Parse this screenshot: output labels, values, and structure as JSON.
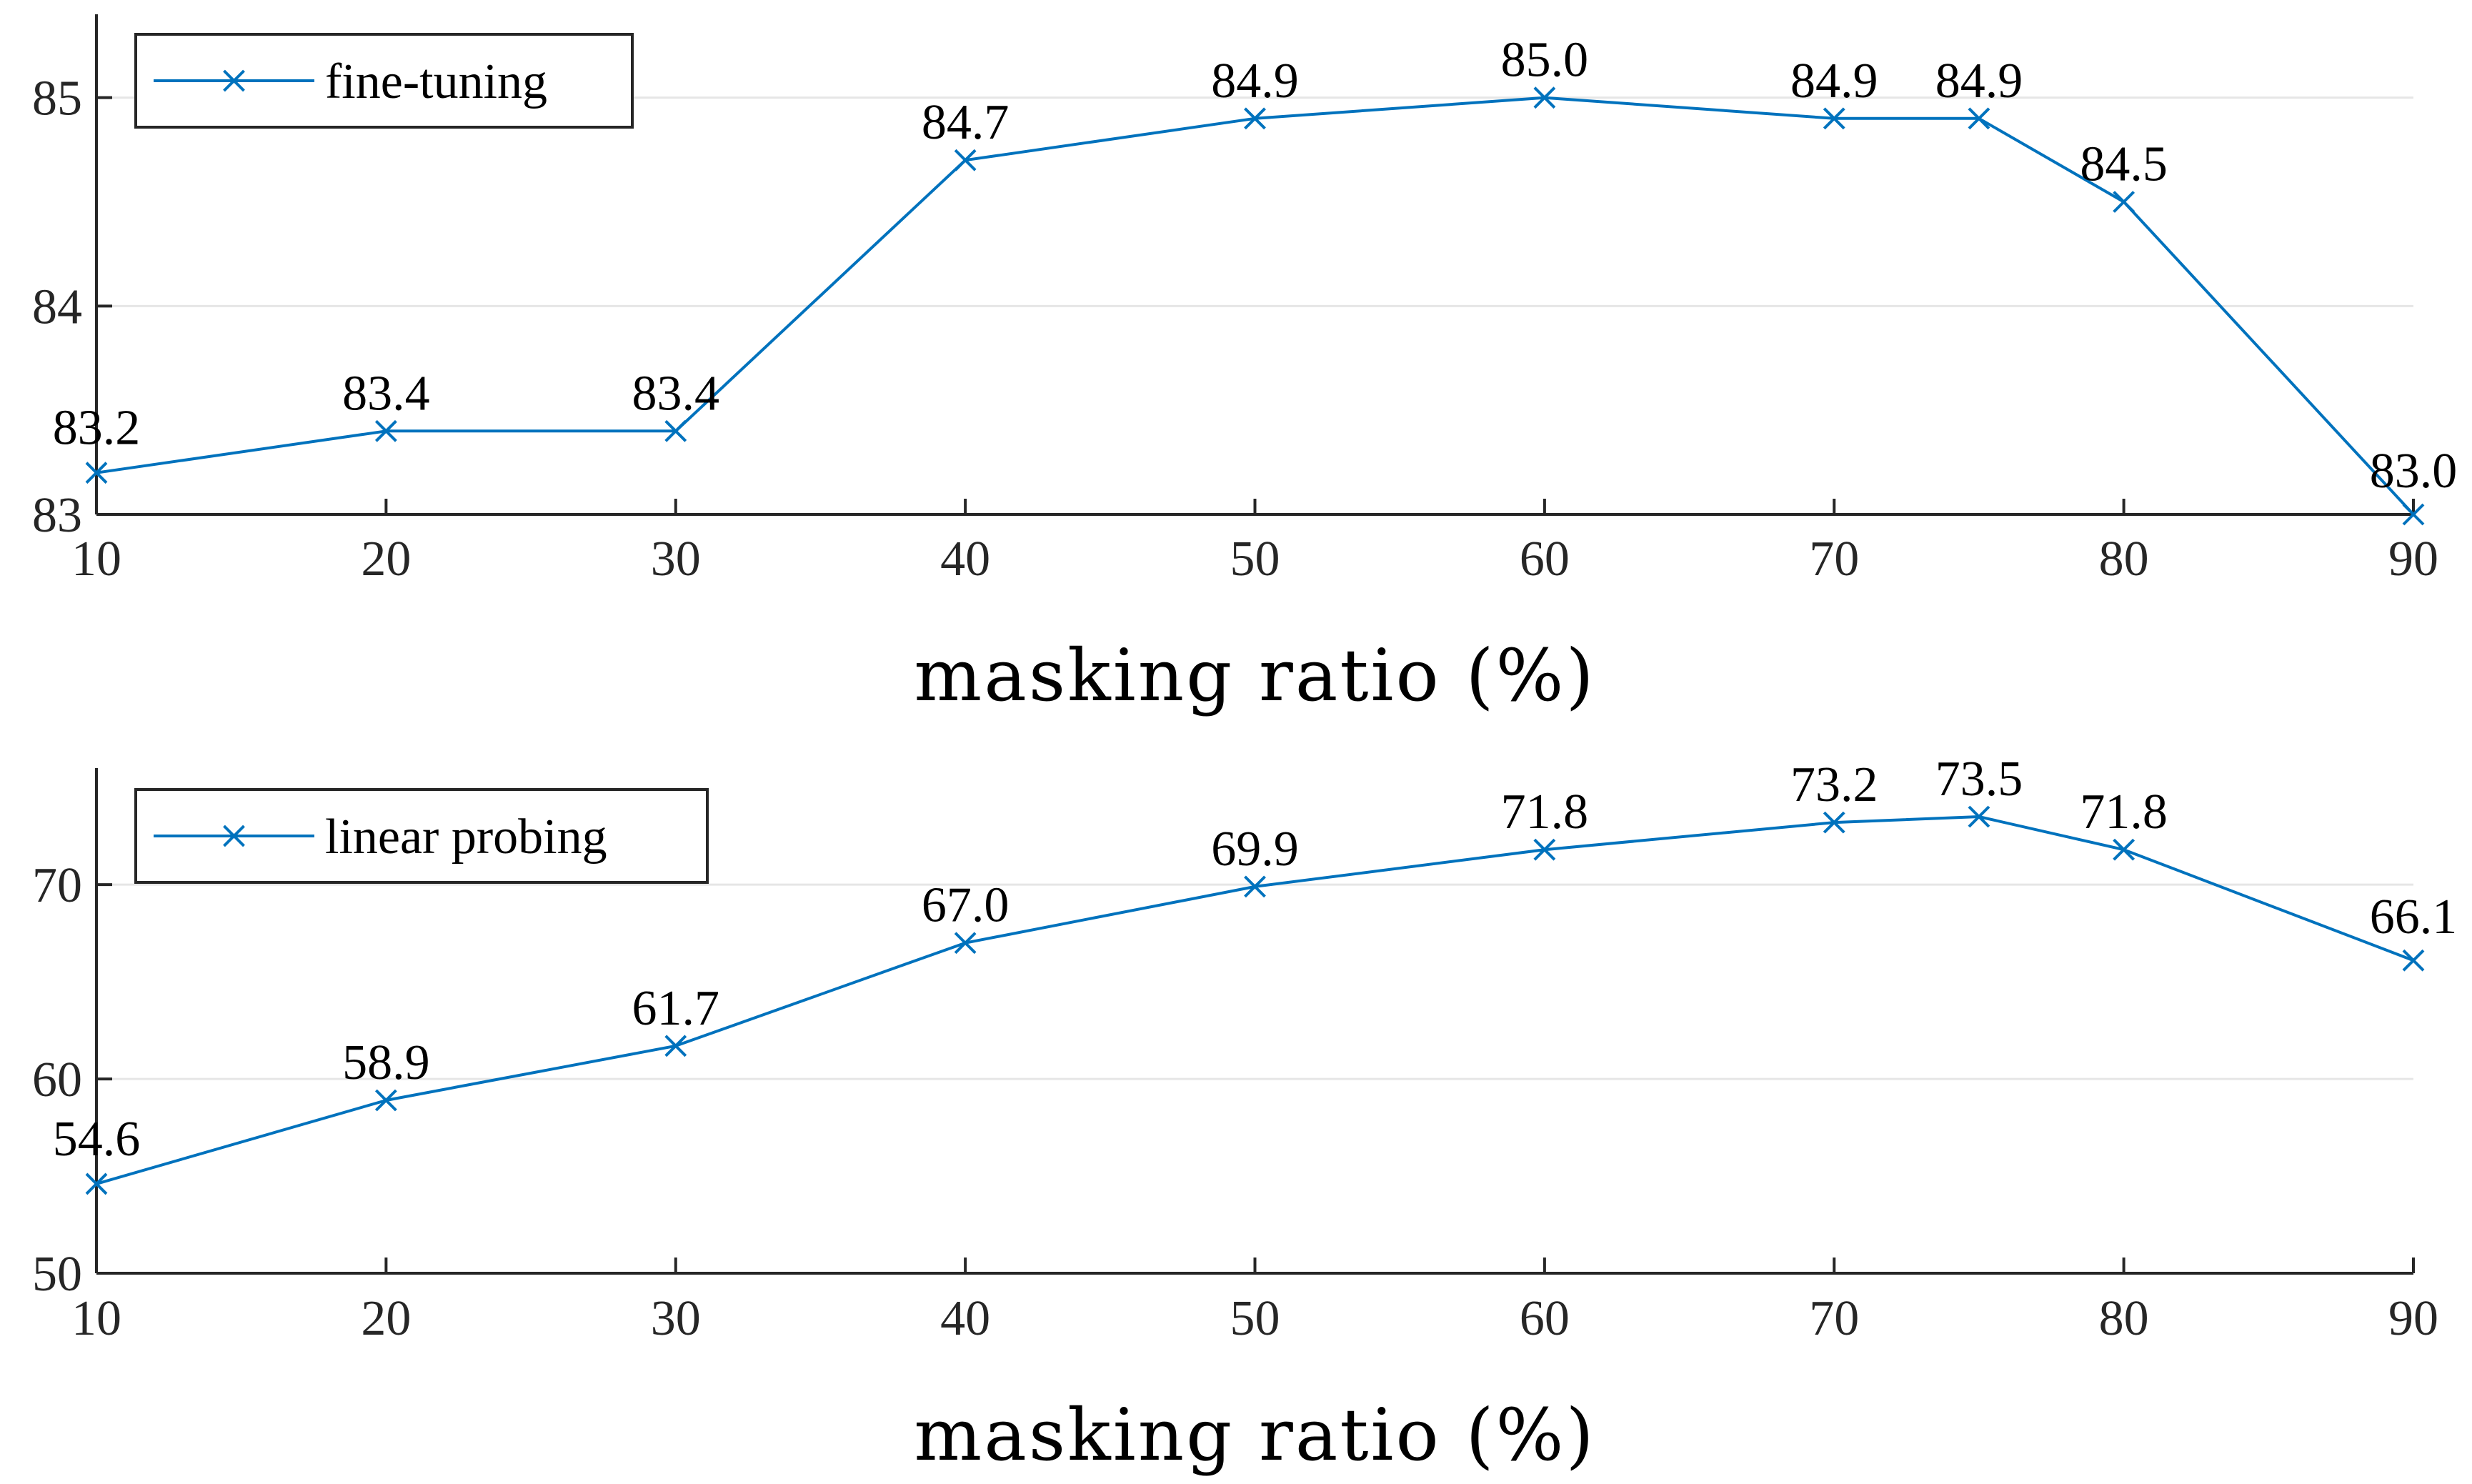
{
  "chart_data": [
    {
      "type": "line",
      "x": [
        10,
        20,
        30,
        40,
        50,
        60,
        70,
        75,
        80,
        90
      ],
      "xticks": [
        "10",
        "20",
        "30",
        "40",
        "50",
        "60",
        "70",
        "80",
        "90"
      ],
      "series": [
        {
          "name": "fine-tuning",
          "values": [
            83.2,
            83.4,
            83.4,
            84.7,
            84.9,
            85.0,
            84.9,
            84.9,
            84.5,
            83.0
          ],
          "data_labels": [
            "83.2",
            "83.4",
            "83.4",
            "84.7",
            "84.9",
            "85.0",
            "84.9",
            "84.9",
            "84.5",
            "83.0"
          ]
        }
      ],
      "xlabel": "masking ratio (%)",
      "ylabel": "",
      "xlim": [
        10,
        90
      ],
      "ylim": [
        83,
        85.4
      ],
      "yticks": [
        "83",
        "84",
        "85"
      ],
      "grid": true,
      "legend_position": "top-left",
      "marker": "x",
      "color": "#0072BD"
    },
    {
      "type": "line",
      "x": [
        10,
        20,
        30,
        40,
        50,
        60,
        70,
        75,
        80,
        90
      ],
      "xticks": [
        "10",
        "20",
        "30",
        "40",
        "50",
        "60",
        "70",
        "80",
        "90"
      ],
      "series": [
        {
          "name": "linear probing",
          "values": [
            54.6,
            58.9,
            61.7,
            67.0,
            69.9,
            71.8,
            73.2,
            73.5,
            71.8,
            66.1
          ],
          "data_labels": [
            "54.6",
            "58.9",
            "61.7",
            "67.0",
            "69.9",
            "71.8",
            "73.2",
            "73.5",
            "71.8",
            "66.1"
          ]
        }
      ],
      "xlabel": "masking ratio (%)",
      "ylabel": "",
      "xlim": [
        10,
        90
      ],
      "ylim": [
        50,
        76
      ],
      "yticks": [
        "50",
        "60",
        "70"
      ],
      "grid": true,
      "legend_position": "top-left",
      "marker": "x",
      "color": "#0072BD"
    }
  ]
}
